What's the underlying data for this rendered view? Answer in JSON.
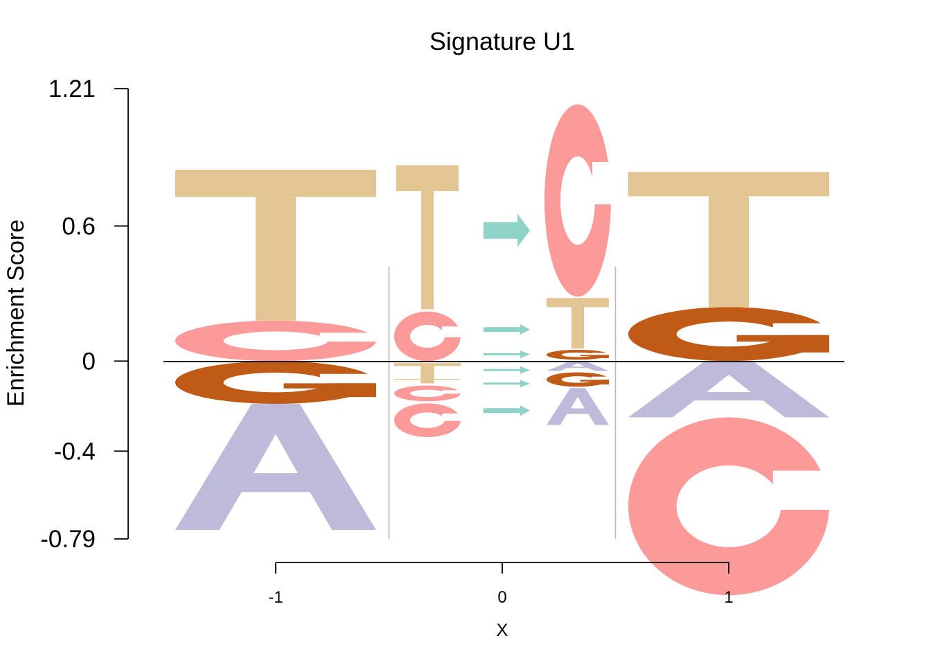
{
  "chart_data": {
    "type": "sequence-logo",
    "title": "Signature U1",
    "xlabel": "X",
    "ylabel": "Enrichment Score",
    "ylim": [
      -0.79,
      1.21
    ],
    "yticks": [
      "1.21",
      "0.6",
      "0",
      "-0.4",
      "-0.79"
    ],
    "yticks_values": [
      1.21,
      0.6,
      0,
      -0.4,
      -0.79
    ],
    "xticks": [
      "-1",
      "0",
      "1"
    ],
    "xticks_values": [
      -1,
      0,
      1
    ],
    "colors": {
      "A": "#bebada",
      "C": "#fb9a99",
      "G": "#c05a17",
      "T": "#e3c493",
      "arrow": "#8ed3c7",
      "separator": "#bdbdbd"
    },
    "positions": [
      {
        "x": -1,
        "type": "letters",
        "positive": [
          {
            "letter": "C",
            "value": 0.18
          },
          {
            "letter": "T",
            "value": 0.67
          }
        ],
        "negative": [
          {
            "letter": "G",
            "value": 0.19
          },
          {
            "letter": "A",
            "value": 0.56
          }
        ]
      },
      {
        "x": 0,
        "type": "mutation",
        "from": [
          {
            "letter": "C",
            "value": 0.22
          },
          {
            "letter": "T",
            "value": 0.07
          },
          {
            "letter": "T",
            "value": 0.02
          },
          {
            "letter": "C",
            "value": 0.07
          },
          {
            "letter": "C",
            "value": 0.15
          }
        ],
        "to": [
          {
            "letter": "C",
            "value": 0.86
          },
          {
            "letter": "T",
            "value": 0.23
          },
          {
            "letter": "G",
            "value": 0.05
          },
          {
            "letter": "A",
            "value": 0.05
          },
          {
            "letter": "G",
            "value": 0.07
          },
          {
            "letter": "A",
            "value": 0.17
          }
        ],
        "arrows": [
          0.58,
          0.14,
          0.03,
          -0.04,
          -0.1,
          -0.22
        ]
      },
      {
        "x": 1,
        "type": "letters",
        "positive": [
          {
            "letter": "G",
            "value": 0.24
          },
          {
            "letter": "T",
            "value": 0.6
          }
        ],
        "negative": [
          {
            "letter": "A",
            "value": 0.25
          },
          {
            "letter": "C",
            "value": 0.79
          }
        ]
      }
    ]
  }
}
